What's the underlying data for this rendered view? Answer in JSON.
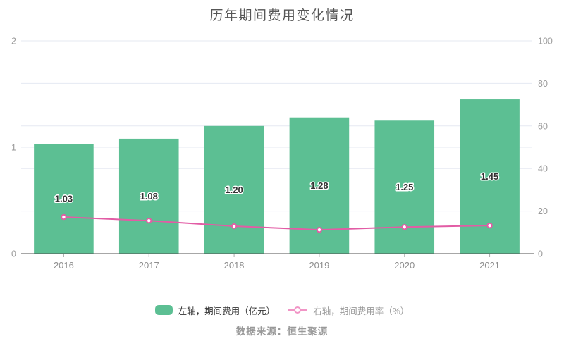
{
  "chart_data": {
    "type": "bar+line",
    "title": "历年期间费用变化情况",
    "categories": [
      "2016",
      "2017",
      "2018",
      "2019",
      "2020",
      "2021"
    ],
    "series": [
      {
        "name": "左轴，期间费用（亿元）",
        "type": "bar",
        "axis": "left",
        "values": [
          1.03,
          1.08,
          1.2,
          1.28,
          1.25,
          1.45
        ],
        "labels": [
          "1.03",
          "1.08",
          "1.20",
          "1.28",
          "1.25",
          "1.45"
        ]
      },
      {
        "name": "右轴，期间费用率（%）",
        "type": "line",
        "axis": "right",
        "values": [
          17.2,
          15.5,
          12.9,
          11.2,
          12.5,
          13.2
        ]
      }
    ],
    "left_axis": {
      "min": 0,
      "max": 2,
      "tick_labels": [
        "0",
        "1",
        "2"
      ],
      "ticks": [
        0,
        1,
        2
      ]
    },
    "right_axis": {
      "min": 0,
      "max": 100,
      "tick_labels": [
        "0",
        "20",
        "40",
        "60",
        "80",
        "100"
      ],
      "ticks": [
        0,
        20,
        40,
        60,
        80,
        100
      ]
    },
    "grid": true,
    "legend_position": "bottom"
  },
  "legend": {
    "items": [
      {
        "label": "左轴，期间费用（亿元）",
        "marker": "bar-swatch"
      },
      {
        "label": "右轴，期间费用率（%）",
        "marker": "line-ring"
      }
    ]
  },
  "source_note": "数据来源：恒生聚源",
  "colors": {
    "bar": "#5CBF93",
    "line": "#E25CA5",
    "legend_line": "#F195C6",
    "grid": "#E5E9F2",
    "axis_line": "#4F4F4F",
    "axis_label": "#999999",
    "x_label": "#8E8E8E",
    "title": "#565656",
    "bar_label": "#333333",
    "legend_text_dark": "#333333",
    "legend_text_gray": "#9B9B9B",
    "source_text": "#999999"
  }
}
